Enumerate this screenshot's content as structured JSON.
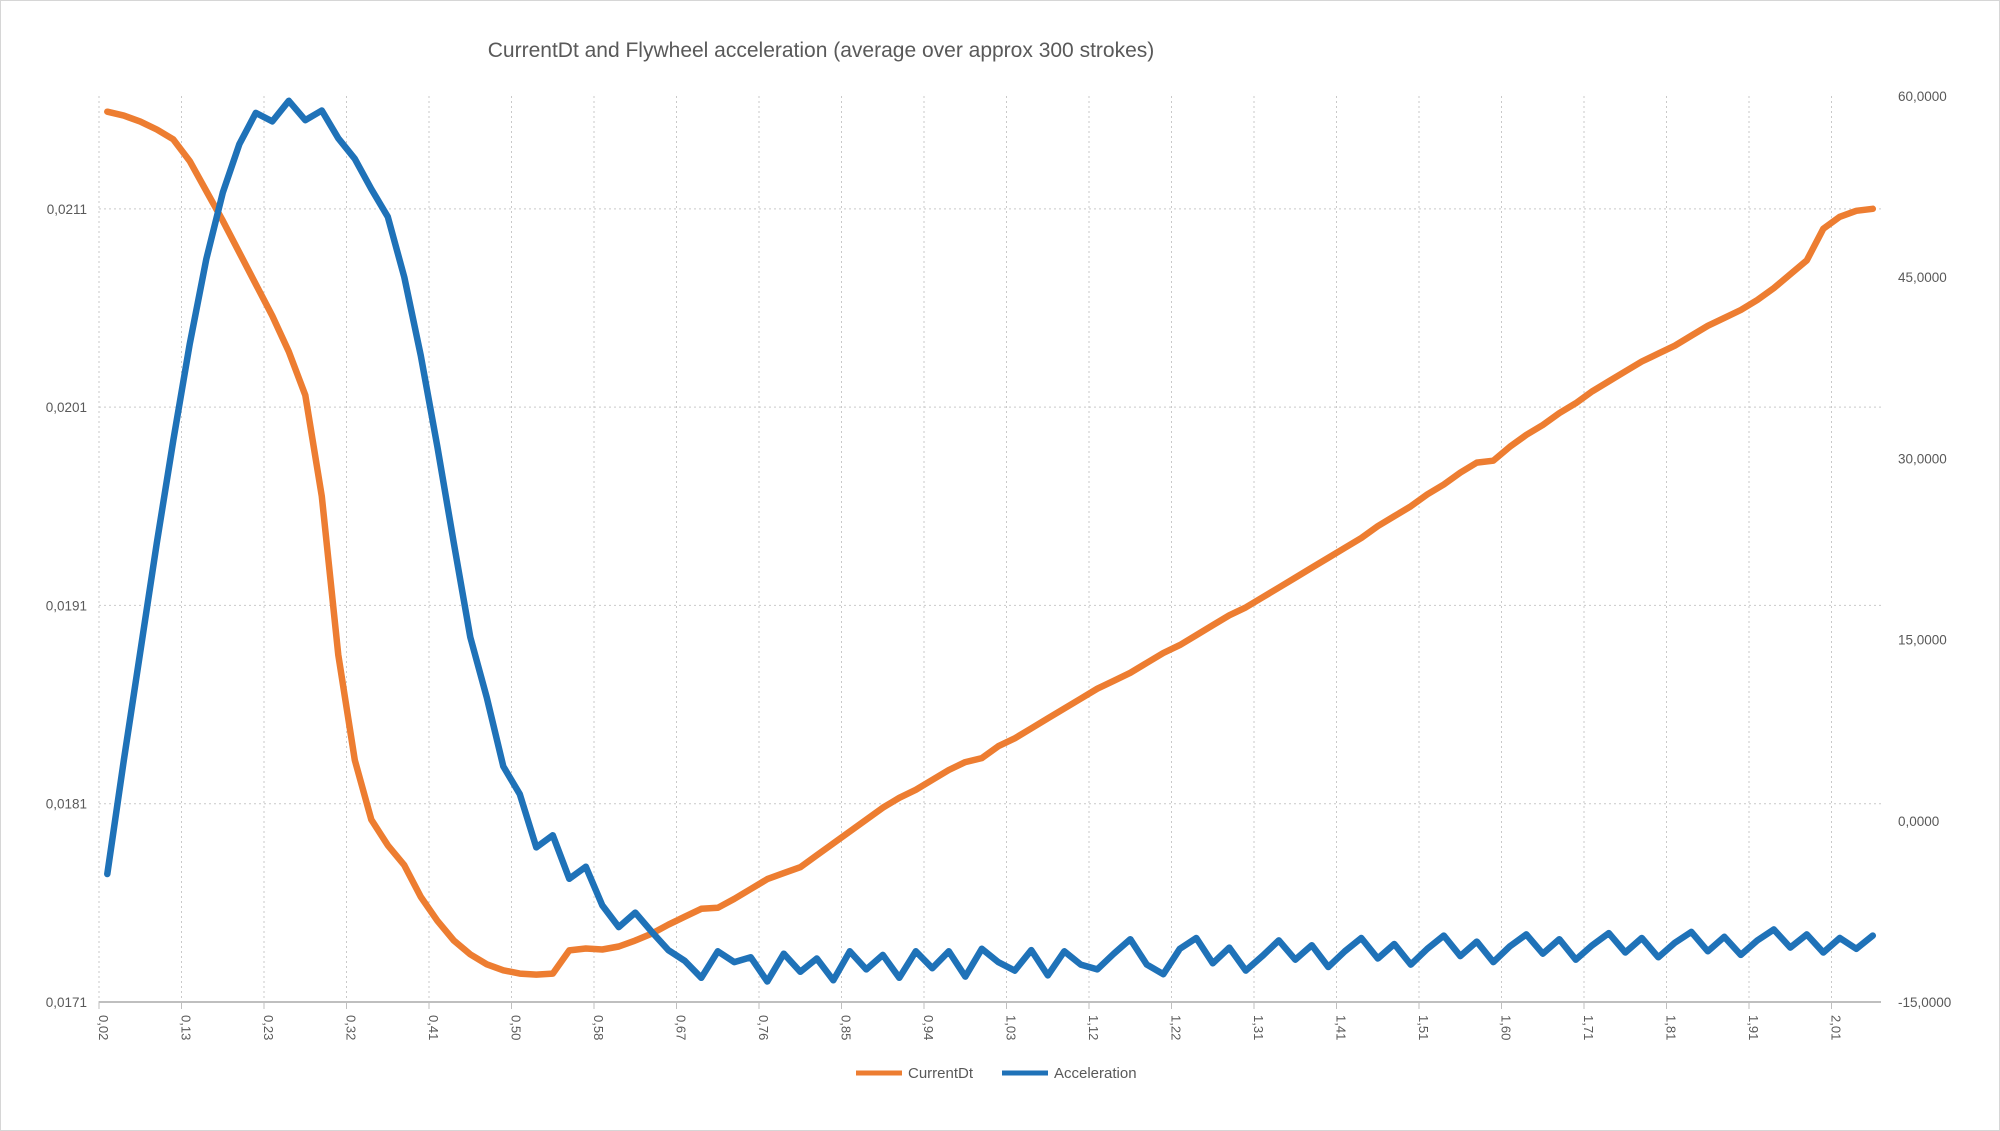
{
  "colors": {
    "background": "#ffffff",
    "frame_border": "#d6d6d6",
    "grid": "#c9c9c9",
    "axis_line": "#bfbfbf",
    "text": "#595959",
    "currentdt": "#ED7D31",
    "acceleration": "#1F72B8"
  },
  "chart_data": {
    "type": "line",
    "title": "CurrentDt and Flywheel acceleration (average over approx 300 strokes)",
    "legend_position": "bottom",
    "grid": {
      "horizontal": true,
      "vertical": true,
      "style": "dotted"
    },
    "x_axis": {
      "tick_labels": [
        "0,02",
        "0,13",
        "0,23",
        "0,32",
        "0,41",
        "0,50",
        "0,58",
        "0,67",
        "0,76",
        "0,85",
        "0,94",
        "1,03",
        "1,12",
        "1,22",
        "1,31",
        "1,41",
        "1,51",
        "1,60",
        "1,71",
        "1,81",
        "1,91",
        "2,01"
      ],
      "label_interval": 5,
      "points_per_series": 108,
      "labels_rotation_deg": 90
    },
    "left_axis": {
      "min": 0.0171,
      "max": 0.021669,
      "ticks": [
        {
          "label": "0,0171",
          "value": 0.0171
        },
        {
          "label": "0,0181",
          "value": 0.0181
        },
        {
          "label": "0,0191",
          "value": 0.0191
        },
        {
          "label": "0,0201",
          "value": 0.0201
        },
        {
          "label": "0,0211",
          "value": 0.0211
        }
      ]
    },
    "right_axis": {
      "min": -15,
      "max": 60,
      "ticks": [
        {
          "label": "-15,0000",
          "value": -15
        },
        {
          "label": "0,0000",
          "value": 0
        },
        {
          "label": "15,0000",
          "value": 15
        },
        {
          "label": "30,0000",
          "value": 30
        },
        {
          "label": "45,0000",
          "value": 45
        },
        {
          "label": "60,0000",
          "value": 60
        }
      ]
    },
    "series": [
      {
        "name": "CurrentDt",
        "axis": "left",
        "color": "#ED7D31",
        "values": [
          0.02159,
          0.02157,
          0.02154,
          0.0215,
          0.02145,
          0.02134,
          0.02119,
          0.02104,
          0.02088,
          0.02072,
          0.02056,
          0.02038,
          0.02016,
          0.01965,
          0.01885,
          0.01832,
          0.01802,
          0.01789,
          0.01779,
          0.01763,
          0.01751,
          0.01741,
          0.01734,
          0.01729,
          0.01726,
          0.017243,
          0.017238,
          0.017243,
          0.01736,
          0.01737,
          0.017365,
          0.01738,
          0.01741,
          0.017445,
          0.01749,
          0.01753,
          0.01757,
          0.017575,
          0.01762,
          0.01767,
          0.01772,
          0.01775,
          0.01778,
          0.01784,
          0.0179,
          0.01796,
          0.01802,
          0.01808,
          0.01813,
          0.01817,
          0.01822,
          0.01827,
          0.01831,
          0.01833,
          0.01839,
          0.01843,
          0.01848,
          0.01853,
          0.01858,
          0.01863,
          0.01868,
          0.01872,
          0.01876,
          0.01881,
          0.01886,
          0.0189,
          0.01895,
          0.019,
          0.01905,
          0.01909,
          0.01914,
          0.01919,
          0.01924,
          0.01929,
          0.01934,
          0.01939,
          0.01944,
          0.0195,
          0.01955,
          0.0196,
          0.01966,
          0.01971,
          0.01977,
          0.01982,
          0.01983,
          0.0199,
          0.01996,
          0.02001,
          0.02007,
          0.02012,
          0.02018,
          0.02023,
          0.02028,
          0.02033,
          0.02037,
          0.02041,
          0.02046,
          0.02051,
          0.02055,
          0.02059,
          0.02064,
          0.0207,
          0.02077,
          0.02084,
          0.021,
          0.02106,
          0.02109,
          0.0211
        ]
      },
      {
        "name": "Acceleration",
        "axis": "right",
        "color": "#1F72B8",
        "values": [
          -4.4,
          5,
          14,
          23,
          31.5,
          39.5,
          46.5,
          52,
          56,
          58.6,
          57.9,
          59.6,
          58,
          58.8,
          56.5,
          54.8,
          52.3,
          50,
          45,
          38.5,
          31,
          23,
          15.2,
          10.2,
          4.5,
          2.2,
          -2.2,
          -1.2,
          -4.8,
          -3.8,
          -7,
          -8.8,
          -7.6,
          -9.2,
          -10.7,
          -11.6,
          -13,
          -10.8,
          -11.7,
          -11.3,
          -13.3,
          -11,
          -12.5,
          -11.4,
          -13.2,
          -10.8,
          -12.3,
          -11.1,
          -13,
          -10.8,
          -12.2,
          -10.8,
          -12.9,
          -10.6,
          -11.7,
          -12.4,
          -10.7,
          -12.8,
          -10.8,
          -11.9,
          -12.3,
          -11,
          -9.8,
          -11.9,
          -12.7,
          -10.6,
          -9.7,
          -11.8,
          -10.5,
          -12.4,
          -11.2,
          -9.9,
          -11.5,
          -10.3,
          -12.1,
          -10.8,
          -9.7,
          -11.4,
          -10.2,
          -11.9,
          -10.6,
          -9.5,
          -11.2,
          -10,
          -11.7,
          -10.4,
          -9.4,
          -11,
          -9.8,
          -11.5,
          -10.3,
          -9.3,
          -10.9,
          -9.7,
          -11.3,
          -10.1,
          -9.2,
          -10.8,
          -9.6,
          -11.1,
          -9.9,
          -9,
          -10.5,
          -9.4,
          -10.9,
          -9.7,
          -10.6,
          -9.5
        ]
      }
    ]
  }
}
